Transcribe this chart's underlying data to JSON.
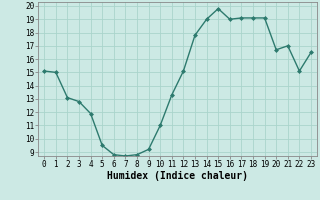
{
  "x": [
    0,
    1,
    2,
    3,
    4,
    5,
    6,
    7,
    8,
    9,
    10,
    11,
    12,
    13,
    14,
    15,
    16,
    17,
    18,
    19,
    20,
    21,
    22,
    23
  ],
  "y": [
    15.1,
    15.0,
    13.1,
    12.8,
    11.9,
    9.5,
    8.8,
    8.7,
    8.8,
    9.2,
    11.0,
    13.3,
    15.1,
    17.8,
    19.0,
    19.8,
    19.0,
    19.1,
    19.1,
    19.1,
    16.7,
    17.0,
    15.1,
    16.5
  ],
  "xlabel": "Humidex (Indice chaleur)",
  "ylim": [
    9,
    20
  ],
  "xlim": [
    -0.5,
    23.5
  ],
  "yticks": [
    9,
    10,
    11,
    12,
    13,
    14,
    15,
    16,
    17,
    18,
    19,
    20
  ],
  "xticks": [
    0,
    1,
    2,
    3,
    4,
    5,
    6,
    7,
    8,
    9,
    10,
    11,
    12,
    13,
    14,
    15,
    16,
    17,
    18,
    19,
    20,
    21,
    22,
    23
  ],
  "line_color": "#2d7a6e",
  "marker": "D",
  "marker_size": 2.0,
  "bg_color": "#cce9e4",
  "grid_color": "#aad4cc",
  "line_width": 1.0,
  "xlabel_fontsize": 7,
  "tick_fontsize": 5.5,
  "spine_color": "#888888"
}
